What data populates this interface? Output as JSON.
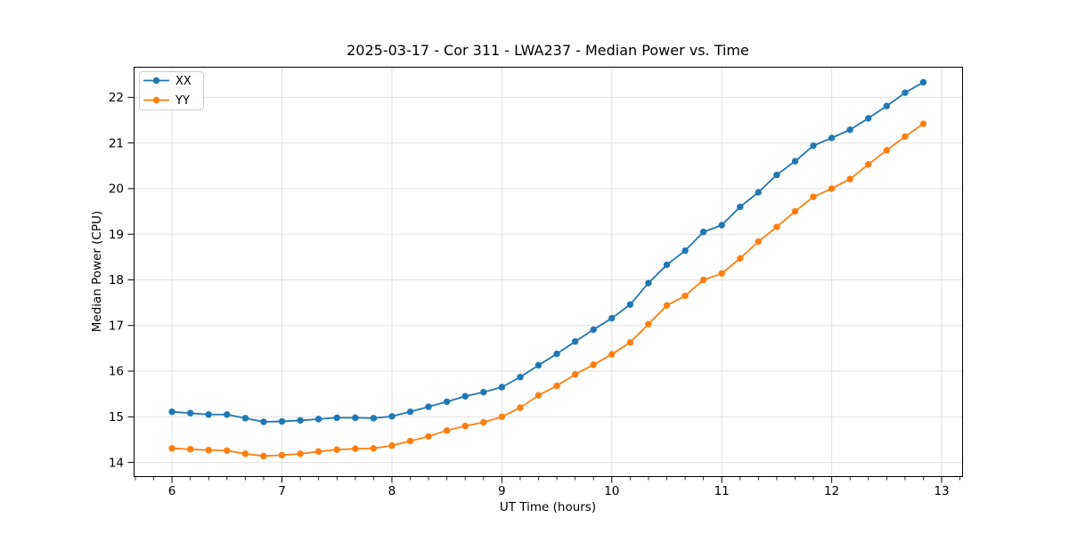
{
  "chart_data": {
    "type": "line",
    "title": "2025-03-17 - Cor 311 - LWA237 - Median Power vs. Time",
    "xlabel": "UT Time (hours)",
    "ylabel": "Median Power (CPU)",
    "xlim": [
      5.655,
      13.19
    ],
    "ylim": [
      13.69,
      22.66
    ],
    "xticks": [
      6,
      7,
      8,
      9,
      10,
      11,
      12,
      13
    ],
    "yticks": [
      14,
      15,
      16,
      17,
      18,
      19,
      20,
      21,
      22
    ],
    "x_minor_step": 0.16667,
    "grid": true,
    "grid_color": "#e0e0e0",
    "spine_color": "#000000",
    "legend": {
      "position": "upper left",
      "frame": true
    },
    "x": [
      6.0,
      6.167,
      6.333,
      6.5,
      6.667,
      6.833,
      7.0,
      7.167,
      7.333,
      7.5,
      7.667,
      7.833,
      8.0,
      8.167,
      8.333,
      8.5,
      8.667,
      8.833,
      9.0,
      9.167,
      9.333,
      9.5,
      9.667,
      9.833,
      10.0,
      10.167,
      10.333,
      10.5,
      10.667,
      10.833,
      11.0,
      11.167,
      11.333,
      11.5,
      11.667,
      11.833,
      12.0,
      12.167,
      12.333,
      12.5,
      12.667,
      12.833
    ],
    "series": [
      {
        "name": "XX",
        "color": "#1f77b4",
        "marker": "circle",
        "values": [
          15.11,
          15.08,
          15.05,
          15.05,
          14.97,
          14.89,
          14.9,
          14.92,
          14.95,
          14.98,
          14.98,
          14.97,
          15.01,
          15.11,
          15.22,
          15.33,
          15.45,
          15.54,
          15.65,
          15.87,
          16.13,
          16.38,
          16.65,
          16.91,
          17.16,
          17.46,
          17.93,
          18.33,
          18.64,
          19.05,
          19.2,
          19.6,
          19.92,
          20.3,
          20.6,
          20.94,
          21.11,
          21.29,
          21.54,
          21.81,
          22.1,
          22.33
        ]
      },
      {
        "name": "YY",
        "color": "#ff7f0e",
        "marker": "circle",
        "values": [
          14.31,
          14.29,
          14.27,
          14.26,
          14.19,
          14.14,
          14.16,
          14.19,
          14.24,
          14.28,
          14.3,
          14.31,
          14.37,
          14.47,
          14.57,
          14.7,
          14.8,
          14.88,
          15.0,
          15.2,
          15.47,
          15.68,
          15.93,
          16.14,
          16.37,
          16.63,
          17.03,
          17.44,
          17.65,
          18.0,
          18.14,
          18.47,
          18.84,
          19.16,
          19.5,
          19.82,
          20.0,
          20.21,
          20.53,
          20.84,
          21.14,
          21.42
        ]
      }
    ]
  }
}
